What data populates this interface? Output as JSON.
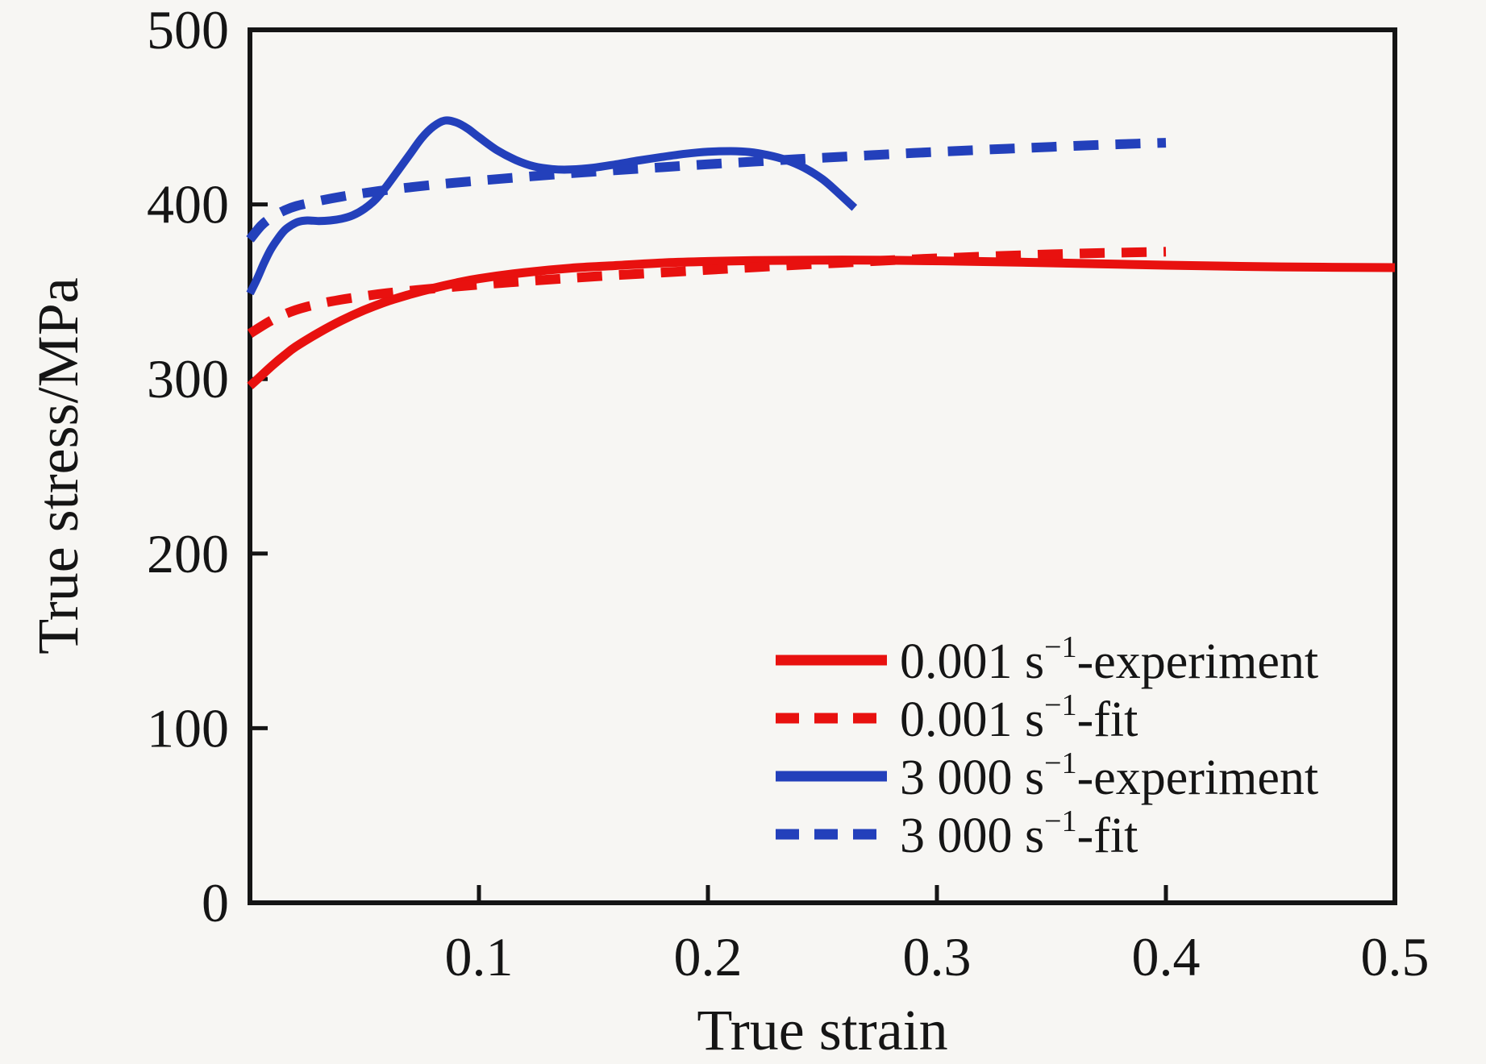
{
  "figure_background": "#f7f6f3",
  "axis_color": "#151515",
  "chart_data": {
    "type": "line",
    "title": "",
    "xlabel": "True strain",
    "ylabel": "True stress/MPa",
    "xlim": [
      0,
      0.5
    ],
    "ylim": [
      0,
      500
    ],
    "x_tick_labels": [
      "0.1",
      "0.2",
      "0.3",
      "0.4",
      "0.5"
    ],
    "y_tick_labels": [
      "0",
      "100",
      "200",
      "300",
      "400",
      "500"
    ],
    "grid": false,
    "legend_position": "lower-right-inside",
    "series": [
      {
        "label_pre": "0.001 s",
        "label_sup": "−1",
        "label_post": "-experiment",
        "color": "#e8110f",
        "style": "solid",
        "points": [
          [
            0,
            296
          ],
          [
            0.005,
            302
          ],
          [
            0.01,
            308
          ],
          [
            0.015,
            313.5
          ],
          [
            0.02,
            318.5
          ],
          [
            0.03,
            326.5
          ],
          [
            0.04,
            333.5
          ],
          [
            0.05,
            339.5
          ],
          [
            0.06,
            344.5
          ],
          [
            0.07,
            348.5
          ],
          [
            0.08,
            352
          ],
          [
            0.09,
            355
          ],
          [
            0.1,
            357.5
          ],
          [
            0.12,
            361
          ],
          [
            0.14,
            363.5
          ],
          [
            0.16,
            365
          ],
          [
            0.18,
            366.5
          ],
          [
            0.2,
            367.3
          ],
          [
            0.22,
            367.8
          ],
          [
            0.25,
            368.1
          ],
          [
            0.28,
            368
          ],
          [
            0.31,
            367.5
          ],
          [
            0.34,
            366.8
          ],
          [
            0.37,
            366
          ],
          [
            0.4,
            365.2
          ],
          [
            0.45,
            364.2
          ],
          [
            0.5,
            363.8
          ]
        ]
      },
      {
        "label_pre": "0.001 s",
        "label_sup": "−1",
        "label_post": "-fit",
        "color": "#e8110f",
        "style": "dashed",
        "points": [
          [
            0,
            326
          ],
          [
            0.01,
            334
          ],
          [
            0.02,
            339.5
          ],
          [
            0.03,
            343
          ],
          [
            0.04,
            345.5
          ],
          [
            0.05,
            347.5
          ],
          [
            0.06,
            349.2
          ],
          [
            0.08,
            351.8
          ],
          [
            0.1,
            354
          ],
          [
            0.12,
            356
          ],
          [
            0.14,
            357.8
          ],
          [
            0.16,
            359.5
          ],
          [
            0.18,
            361
          ],
          [
            0.2,
            362.5
          ],
          [
            0.22,
            364
          ],
          [
            0.24,
            365.4
          ],
          [
            0.26,
            366.7
          ],
          [
            0.28,
            368
          ],
          [
            0.3,
            369.1
          ],
          [
            0.32,
            370.1
          ],
          [
            0.34,
            371
          ],
          [
            0.36,
            371.8
          ],
          [
            0.38,
            372.4
          ],
          [
            0.4,
            372.9
          ]
        ]
      },
      {
        "label_pre": "3 000 s",
        "label_sup": "−1",
        "label_post": "-experiment",
        "color": "#2340bb",
        "style": "solid",
        "points": [
          [
            0,
            349
          ],
          [
            0.003,
            357
          ],
          [
            0.006,
            366
          ],
          [
            0.009,
            374
          ],
          [
            0.012,
            380
          ],
          [
            0.015,
            385
          ],
          [
            0.018,
            388
          ],
          [
            0.021,
            390
          ],
          [
            0.025,
            390.8
          ],
          [
            0.03,
            390.5
          ],
          [
            0.035,
            390.8
          ],
          [
            0.04,
            391.8
          ],
          [
            0.045,
            393.8
          ],
          [
            0.05,
            397.5
          ],
          [
            0.055,
            403
          ],
          [
            0.06,
            411
          ],
          [
            0.065,
            420
          ],
          [
            0.07,
            429
          ],
          [
            0.075,
            438
          ],
          [
            0.08,
            444.5
          ],
          [
            0.085,
            448
          ],
          [
            0.09,
            447
          ],
          [
            0.095,
            443.5
          ],
          [
            0.1,
            438.5
          ],
          [
            0.108,
            431
          ],
          [
            0.116,
            425.5
          ],
          [
            0.124,
            421.8
          ],
          [
            0.132,
            420.2
          ],
          [
            0.14,
            420
          ],
          [
            0.15,
            421
          ],
          [
            0.16,
            423
          ],
          [
            0.17,
            425.2
          ],
          [
            0.18,
            427.2
          ],
          [
            0.19,
            429
          ],
          [
            0.2,
            430.2
          ],
          [
            0.21,
            430.5
          ],
          [
            0.218,
            430
          ],
          [
            0.226,
            428.3
          ],
          [
            0.234,
            425.5
          ],
          [
            0.242,
            421
          ],
          [
            0.25,
            414.5
          ],
          [
            0.257,
            406.5
          ],
          [
            0.264,
            398
          ]
        ]
      },
      {
        "label_pre": "3 000 s",
        "label_sup": "−1",
        "label_post": "-fit",
        "color": "#2340bb",
        "style": "dashed",
        "points": [
          [
            0,
            380
          ],
          [
            0.005,
            388
          ],
          [
            0.01,
            393
          ],
          [
            0.015,
            396.5
          ],
          [
            0.02,
            399
          ],
          [
            0.03,
            402
          ],
          [
            0.04,
            404.5
          ],
          [
            0.05,
            406.5
          ],
          [
            0.06,
            408.3
          ],
          [
            0.08,
            411.2
          ],
          [
            0.1,
            413.6
          ],
          [
            0.12,
            415.8
          ],
          [
            0.14,
            417.8
          ],
          [
            0.16,
            419.6
          ],
          [
            0.18,
            421.3
          ],
          [
            0.2,
            423
          ],
          [
            0.22,
            424.5
          ],
          [
            0.24,
            426
          ],
          [
            0.26,
            427.4
          ],
          [
            0.28,
            428.8
          ],
          [
            0.3,
            430.1
          ],
          [
            0.32,
            431.3
          ],
          [
            0.34,
            432.4
          ],
          [
            0.36,
            433.5
          ],
          [
            0.38,
            434.5
          ],
          [
            0.4,
            435.3
          ]
        ]
      }
    ]
  }
}
